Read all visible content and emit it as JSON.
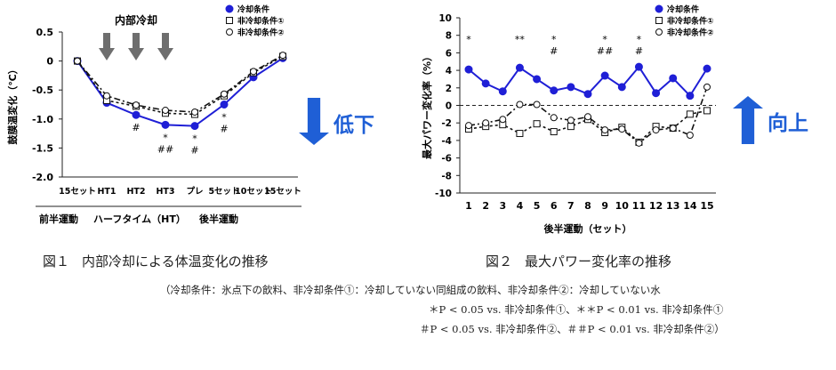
{
  "chart_data": [
    {
      "type": "line",
      "ylabel": "鼓膜温変化（℃）",
      "ylim": [
        -2.0,
        0.5
      ],
      "yticks": [
        "0.5",
        "0",
        "-0.5",
        "-1.0",
        "-1.5",
        "-2.0"
      ],
      "categories": [
        "15セット",
        "HT1",
        "HT2",
        "HT3",
        "プレ",
        "5セット",
        "10セット",
        "15セット"
      ],
      "x_groups": [
        {
          "label": "前半運動"
        },
        {
          "label": "ハーフタイム（HT）"
        },
        {
          "label": "後半運動"
        }
      ],
      "intervention_label": "内部冷却",
      "series": [
        {
          "name": "冷却条件",
          "marker": "filled-circle",
          "color": "#1f1fd6",
          "values": [
            0,
            -0.72,
            -0.93,
            -1.1,
            -1.12,
            -0.75,
            -0.28,
            0.05
          ]
        },
        {
          "name": "非冷却条件①",
          "marker": "open-square",
          "color": "#111111",
          "values": [
            0,
            -0.68,
            -0.78,
            -0.9,
            -0.92,
            -0.6,
            -0.2,
            0.08
          ]
        },
        {
          "name": "非冷却条件②",
          "marker": "open-circle",
          "color": "#111111",
          "values": [
            0,
            -0.6,
            -0.76,
            -0.85,
            -0.88,
            -0.57,
            -0.18,
            0.1
          ]
        }
      ],
      "significance": [
        {
          "category": "HT2",
          "marks": [
            "#"
          ]
        },
        {
          "category": "HT3",
          "marks": [
            "*",
            "##"
          ]
        },
        {
          "category": "プレ",
          "marks": [
            "*",
            "#"
          ]
        },
        {
          "category": "5セット",
          "marks": [
            "*",
            "#"
          ]
        }
      ],
      "side_label": "低下",
      "side_arrow": "down",
      "side_color": "#1f5fd6"
    },
    {
      "type": "line",
      "xlabel": "後半運動（セット）",
      "ylabel": "最大パワー変化率（%）",
      "ylim": [
        -10,
        10
      ],
      "yticks": [
        "10",
        "8",
        "6",
        "4",
        "2",
        "0",
        "-2",
        "-4",
        "-6",
        "-8",
        "-10"
      ],
      "categories": [
        "1",
        "2",
        "3",
        "4",
        "5",
        "6",
        "7",
        "8",
        "9",
        "10",
        "11",
        "12",
        "13",
        "14",
        "15"
      ],
      "series": [
        {
          "name": "冷却条件",
          "marker": "filled-circle",
          "color": "#1f1fd6",
          "values": [
            4.1,
            2.5,
            1.6,
            4.3,
            3.0,
            1.7,
            2.1,
            1.3,
            3.4,
            2.1,
            4.4,
            1.4,
            3.1,
            1.1,
            4.2
          ]
        },
        {
          "name": "非冷却条件①",
          "marker": "open-square",
          "color": "#111111",
          "values": [
            -2.7,
            -2.4,
            -2.2,
            -3.2,
            -2.1,
            -3.0,
            -2.4,
            -1.6,
            -3.1,
            -2.5,
            -4.2,
            -2.4,
            -2.6,
            -1.0,
            -0.6
          ]
        },
        {
          "name": "非冷却条件②",
          "marker": "open-circle",
          "color": "#111111",
          "values": [
            -2.3,
            -2.0,
            -1.6,
            0.1,
            0.1,
            -1.4,
            -1.7,
            -1.3,
            -2.8,
            -2.7,
            -4.3,
            -2.8,
            -2.6,
            -3.4,
            2.1
          ]
        }
      ],
      "significance": [
        {
          "category": "1",
          "marks": [
            "*"
          ]
        },
        {
          "category": "4",
          "marks": [
            "**"
          ]
        },
        {
          "category": "6",
          "marks": [
            "*",
            "#"
          ]
        },
        {
          "category": "9",
          "marks": [
            "*",
            "##"
          ]
        },
        {
          "category": "11",
          "marks": [
            "*",
            "#"
          ]
        }
      ],
      "side_label": "向上",
      "side_arrow": "up",
      "side_color": "#1f5fd6"
    }
  ],
  "captions": {
    "fig1_num": "図１",
    "fig1_text": "内部冷却による体温変化の推移",
    "fig2_num": "図２",
    "fig2_text": "最大パワー変化率の推移"
  },
  "notes": {
    "line1": "（冷却条件：氷点下の飲料、非冷却条件①：冷却していない同組成の飲料、非冷却条件②：冷却していない水",
    "line2": "＊P < 0.05 vs. 非冷却条件①、＊＊P < 0.01 vs. 非冷却条件①",
    "line3": "＃P < 0.05 vs. 非冷却条件②、＃＃P < 0.01 vs. 非冷却条件②）"
  }
}
